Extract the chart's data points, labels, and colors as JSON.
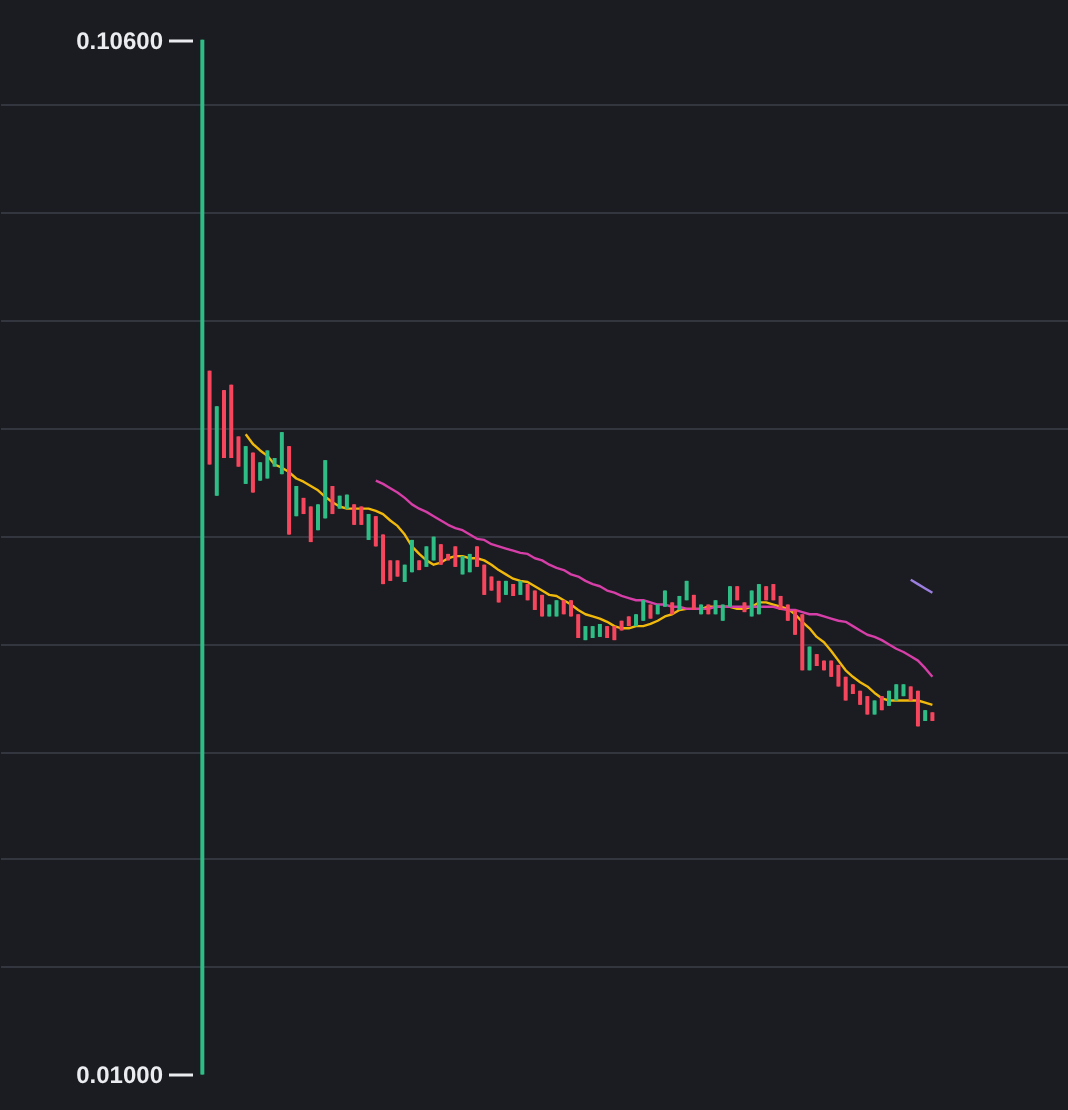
{
  "chart_data": {
    "type": "candlestick",
    "categories": [
      null,
      null,
      null,
      null,
      null,
      null,
      null,
      null,
      null,
      null,
      null,
      null,
      null,
      null,
      null,
      null,
      null,
      null,
      null,
      null,
      null,
      null,
      null,
      null,
      null,
      null,
      null,
      null,
      null,
      null,
      null,
      null,
      null,
      null,
      null,
      null,
      null,
      null,
      null,
      null,
      null,
      null,
      null,
      null,
      null,
      null,
      null,
      null,
      null,
      null,
      null,
      null,
      null,
      null,
      null,
      null,
      null,
      null,
      null,
      null,
      null,
      null,
      null,
      null,
      null,
      null,
      null,
      null,
      null,
      null,
      null,
      null,
      null,
      null,
      null,
      null,
      null,
      null,
      null,
      null,
      null,
      null,
      null,
      null,
      null,
      null,
      null,
      null,
      null,
      null,
      null,
      null,
      null,
      null,
      null,
      null,
      null,
      null,
      null,
      null,
      null,
      null
    ],
    "ohlc": [
      [
        0.01,
        0.106,
        0.01,
        0.106
      ],
      [
        0.0753,
        0.0753,
        0.0666,
        0.0666
      ],
      [
        0.0637,
        0.072,
        0.0637,
        0.072
      ],
      [
        0.0735,
        0.0735,
        0.0672,
        0.0672
      ],
      [
        0.074,
        0.074,
        0.0672,
        0.0672
      ],
      [
        0.0692,
        0.0692,
        0.0664,
        0.0664
      ],
      [
        0.0648,
        0.0683,
        0.0648,
        0.0683
      ],
      [
        0.0677,
        0.0677,
        0.064,
        0.064
      ],
      [
        0.0651,
        0.0668,
        0.0651,
        0.0668
      ],
      [
        0.0653,
        0.0679,
        0.0653,
        0.0679
      ],
      [
        0.0664,
        0.0672,
        0.0664,
        0.0672
      ],
      [
        0.0657,
        0.0696,
        0.0657,
        0.0696
      ],
      [
        0.0683,
        0.0683,
        0.0601,
        0.0601
      ],
      [
        0.0618,
        0.0646,
        0.0618,
        0.0646
      ],
      [
        0.0635,
        0.0635,
        0.062,
        0.062
      ],
      [
        0.0627,
        0.0627,
        0.0594,
        0.0594
      ],
      [
        0.0605,
        0.0629,
        0.0605,
        0.0629
      ],
      [
        0.0616,
        0.067,
        0.0616,
        0.067
      ],
      [
        0.0646,
        0.0646,
        0.062,
        0.062
      ],
      [
        0.0625,
        0.0637,
        0.0625,
        0.0637
      ],
      [
        0.0625,
        0.0638,
        0.0625,
        0.0638
      ],
      [
        0.0629,
        0.0629,
        0.061,
        0.061
      ],
      [
        0.0627,
        0.0627,
        0.061,
        0.061
      ],
      [
        0.0596,
        0.062,
        0.0596,
        0.062
      ],
      [
        0.0618,
        0.0618,
        0.059,
        0.059
      ],
      [
        0.0601,
        0.0601,
        0.0555,
        0.0555
      ],
      [
        0.0577,
        0.0577,
        0.0558,
        0.0558
      ],
      [
        0.0577,
        0.0577,
        0.0562,
        0.0562
      ],
      [
        0.0557,
        0.0573,
        0.0557,
        0.0573
      ],
      [
        0.0566,
        0.0596,
        0.0566,
        0.0596
      ],
      [
        0.0577,
        0.0577,
        0.0568,
        0.0568
      ],
      [
        0.0571,
        0.059,
        0.0571,
        0.059
      ],
      [
        0.0577,
        0.0599,
        0.0577,
        0.0599
      ],
      [
        0.0592,
        0.0592,
        0.0573,
        0.0573
      ],
      [
        0.0583,
        0.0583,
        0.0577,
        0.0577
      ],
      [
        0.059,
        0.059,
        0.0571,
        0.0571
      ],
      [
        0.0564,
        0.0581,
        0.0564,
        0.0581
      ],
      [
        0.0566,
        0.0583,
        0.0566,
        0.0583
      ],
      [
        0.059,
        0.059,
        0.0571,
        0.0571
      ],
      [
        0.0573,
        0.0573,
        0.0545,
        0.0545
      ],
      [
        0.0562,
        0.0562,
        0.0549,
        0.0549
      ],
      [
        0.0558,
        0.0558,
        0.0538,
        0.0538
      ],
      [
        0.0545,
        0.0558,
        0.0545,
        0.0558
      ],
      [
        0.0555,
        0.0555,
        0.0544,
        0.0544
      ],
      [
        0.0545,
        0.0558,
        0.0545,
        0.0558
      ],
      [
        0.0555,
        0.0555,
        0.054,
        0.054
      ],
      [
        0.0549,
        0.0549,
        0.0531,
        0.0531
      ],
      [
        0.0545,
        0.0545,
        0.0525,
        0.0525
      ],
      [
        0.0525,
        0.0536,
        0.0525,
        0.0536
      ],
      [
        0.0525,
        0.054,
        0.0525,
        0.054
      ],
      [
        0.054,
        0.054,
        0.0527,
        0.0527
      ],
      [
        0.054,
        0.054,
        0.0525,
        0.0525
      ],
      [
        0.0527,
        0.0527,
        0.0505,
        0.0505
      ],
      [
        0.0503,
        0.0516,
        0.0503,
        0.0516
      ],
      [
        0.0505,
        0.0516,
        0.0505,
        0.0516
      ],
      [
        0.0506,
        0.0518,
        0.0506,
        0.0518
      ],
      [
        0.0516,
        0.0516,
        0.0505,
        0.0505
      ],
      [
        0.0516,
        0.0516,
        0.0503,
        0.0503
      ],
      [
        0.0521,
        0.0521,
        0.0512,
        0.0512
      ],
      [
        0.0525,
        0.0525,
        0.0516,
        0.0516
      ],
      [
        0.0516,
        0.0527,
        0.0516,
        0.0527
      ],
      [
        0.0521,
        0.054,
        0.0521,
        0.054
      ],
      [
        0.0536,
        0.0536,
        0.0523,
        0.0523
      ],
      [
        0.0527,
        0.0536,
        0.0527,
        0.0536
      ],
      [
        0.0534,
        0.0549,
        0.0534,
        0.0549
      ],
      [
        0.0538,
        0.0538,
        0.0527,
        0.0527
      ],
      [
        0.0531,
        0.0544,
        0.0531,
        0.0544
      ],
      [
        0.054,
        0.0558,
        0.054,
        0.0558
      ],
      [
        0.0545,
        0.0545,
        0.0531,
        0.0531
      ],
      [
        0.0527,
        0.0536,
        0.0527,
        0.0536
      ],
      [
        0.0536,
        0.0536,
        0.0527,
        0.0527
      ],
      [
        0.0527,
        0.054,
        0.0527,
        0.054
      ],
      [
        0.0521,
        0.0536,
        0.0521,
        0.0536
      ],
      [
        0.0534,
        0.0553,
        0.0534,
        0.0553
      ],
      [
        0.0553,
        0.0553,
        0.054,
        0.054
      ],
      [
        0.0538,
        0.0538,
        0.0529,
        0.0529
      ],
      [
        0.0525,
        0.0549,
        0.0525,
        0.0549
      ],
      [
        0.0527,
        0.0555,
        0.0527,
        0.0555
      ],
      [
        0.0553,
        0.0553,
        0.054,
        0.054
      ],
      [
        0.0555,
        0.0555,
        0.054,
        0.054
      ],
      [
        0.0544,
        0.0544,
        0.0531,
        0.0531
      ],
      [
        0.0536,
        0.0536,
        0.0521,
        0.0521
      ],
      [
        0.0531,
        0.0531,
        0.0508,
        0.0508
      ],
      [
        0.0527,
        0.0527,
        0.0475,
        0.0475
      ],
      [
        0.0475,
        0.0497,
        0.0475,
        0.0497
      ],
      [
        0.049,
        0.049,
        0.0479,
        0.0479
      ],
      [
        0.0484,
        0.0484,
        0.0475,
        0.0475
      ],
      [
        0.0484,
        0.0484,
        0.0469,
        0.0469
      ],
      [
        0.048,
        0.048,
        0.046,
        0.046
      ],
      [
        0.0469,
        0.0469,
        0.0447,
        0.0447
      ],
      [
        0.0462,
        0.0462,
        0.0453,
        0.0453
      ],
      [
        0.0456,
        0.0456,
        0.0443,
        0.0443
      ],
      [
        0.0451,
        0.0451,
        0.0434,
        0.0434
      ],
      [
        0.0434,
        0.0447,
        0.0434,
        0.0447
      ],
      [
        0.0451,
        0.0451,
        0.0438,
        0.0438
      ],
      [
        0.0442,
        0.0456,
        0.0442,
        0.0456
      ],
      [
        0.0447,
        0.0462,
        0.0447,
        0.0462
      ],
      [
        0.0451,
        0.0462,
        0.0451,
        0.0462
      ],
      [
        0.046,
        0.046,
        0.0447,
        0.0447
      ],
      [
        0.0456,
        0.0456,
        0.0423,
        0.0423
      ],
      [
        0.0428,
        0.0438,
        0.0428,
        0.0438
      ],
      [
        0.0436,
        0.0436,
        0.0428,
        0.0428
      ]
    ],
    "colors": [
      "#2ebd85",
      "#f6465d",
      "#2ebd85",
      "#f6465d",
      "#f6465d",
      "#f6465d",
      "#2ebd85",
      "#f6465d",
      "#2ebd85",
      "#2ebd85",
      "#2ebd85",
      "#2ebd85",
      "#f6465d",
      "#2ebd85",
      "#f6465d",
      "#f6465d",
      "#2ebd85",
      "#2ebd85",
      "#f6465d",
      "#2ebd85",
      "#2ebd85",
      "#f6465d",
      "#f6465d",
      "#2ebd85",
      "#f6465d",
      "#f6465d",
      "#f6465d",
      "#f6465d",
      "#2ebd85",
      "#2ebd85",
      "#f6465d",
      "#2ebd85",
      "#2ebd85",
      "#f6465d",
      "#f6465d",
      "#f6465d",
      "#2ebd85",
      "#2ebd85",
      "#f6465d",
      "#f6465d",
      "#f6465d",
      "#f6465d",
      "#2ebd85",
      "#f6465d",
      "#2ebd85",
      "#f6465d",
      "#f6465d",
      "#f6465d",
      "#2ebd85",
      "#2ebd85",
      "#f6465d",
      "#f6465d",
      "#f6465d",
      "#2ebd85",
      "#2ebd85",
      "#2ebd85",
      "#f6465d",
      "#f6465d",
      "#f6465d",
      "#f6465d",
      "#2ebd85",
      "#2ebd85",
      "#f6465d",
      "#2ebd85",
      "#2ebd85",
      "#f6465d",
      "#2ebd85",
      "#2ebd85",
      "#f6465d",
      "#2ebd85",
      "#f6465d",
      "#2ebd85",
      "#2ebd85",
      "#2ebd85",
      "#f6465d",
      "#f6465d",
      "#2ebd85",
      "#2ebd85",
      "#f6465d",
      "#f6465d",
      "#f6465d",
      "#f6465d",
      "#f6465d",
      "#f6465d",
      "#2ebd85",
      "#f6465d",
      "#f6465d",
      "#f6465d",
      "#f6465d",
      "#f6465d",
      "#f6465d",
      "#f6465d",
      "#f6465d",
      "#2ebd85",
      "#f6465d",
      "#2ebd85",
      "#2ebd85",
      "#2ebd85",
      "#f6465d",
      "#f6465d",
      "#2ebd85",
      "#f6465d"
    ],
    "series": [
      {
        "type": "line",
        "color": "#f0b90b",
        "values": [
          null,
          null,
          null,
          null,
          null,
          null,
          0.0694,
          0.0685,
          0.0679,
          0.0674,
          0.0666,
          0.0663,
          0.0659,
          0.0653,
          0.065,
          0.0646,
          0.0642,
          0.0636,
          0.0631,
          0.0627,
          0.0625,
          0.0625,
          0.0625,
          0.0625,
          0.0623,
          0.062,
          0.0614,
          0.0609,
          0.0601,
          0.059,
          0.0583,
          0.0577,
          0.0573,
          0.0575,
          0.0579,
          0.0581,
          0.0581,
          0.0579,
          0.0579,
          0.0577,
          0.0573,
          0.0568,
          0.0564,
          0.056,
          0.0558,
          0.0557,
          0.0553,
          0.0549,
          0.0545,
          0.0544,
          0.054,
          0.0536,
          0.0531,
          0.0527,
          0.0525,
          0.0523,
          0.052,
          0.0516,
          0.0514,
          0.0514,
          0.0516,
          0.0516,
          0.0518,
          0.0521,
          0.0525,
          0.0527,
          0.0531,
          0.0532,
          0.0532,
          0.0532,
          0.0534,
          0.0534,
          0.0534,
          0.0534,
          0.0532,
          0.0532,
          0.0534,
          0.0538,
          0.0538,
          0.0536,
          0.0534,
          0.0532,
          0.0527,
          0.052,
          0.0514,
          0.0506,
          0.0501,
          0.0493,
          0.0484,
          0.0475,
          0.0469,
          0.0464,
          0.046,
          0.0454,
          0.0449,
          0.0447,
          0.0447,
          0.0447,
          0.0447,
          0.0447,
          0.0445,
          0.0443
        ]
      },
      {
        "type": "line",
        "color": "#d63ea8",
        "values": [
          null,
          null,
          null,
          null,
          null,
          null,
          null,
          null,
          null,
          null,
          null,
          null,
          null,
          null,
          null,
          null,
          null,
          null,
          null,
          null,
          null,
          null,
          null,
          null,
          0.0651,
          0.0648,
          0.0644,
          0.064,
          0.0635,
          0.0629,
          0.0625,
          0.0622,
          0.0618,
          0.0614,
          0.061,
          0.0607,
          0.0605,
          0.0601,
          0.0597,
          0.0596,
          0.0592,
          0.059,
          0.0588,
          0.0586,
          0.0584,
          0.0583,
          0.0579,
          0.0577,
          0.0573,
          0.057,
          0.0568,
          0.0564,
          0.0562,
          0.0558,
          0.0555,
          0.0553,
          0.0549,
          0.0547,
          0.0544,
          0.0542,
          0.054,
          0.054,
          0.0538,
          0.0536,
          0.0536,
          0.0534,
          0.0534,
          0.0532,
          0.0532,
          0.0532,
          0.0532,
          0.0534,
          0.0534,
          0.0534,
          0.0534,
          0.0534,
          0.0534,
          0.0534,
          0.0534,
          0.0534,
          0.0532,
          0.0531,
          0.0531,
          0.0529,
          0.0527,
          0.0527,
          0.0525,
          0.0523,
          0.0521,
          0.052,
          0.0516,
          0.0512,
          0.0508,
          0.0506,
          0.0503,
          0.0499,
          0.0495,
          0.0492,
          0.0488,
          0.0484,
          0.0477,
          0.0469
        ]
      },
      {
        "type": "line",
        "color": "#9c7ee0",
        "values": [
          null,
          null,
          null,
          null,
          null,
          null,
          null,
          null,
          null,
          null,
          null,
          null,
          null,
          null,
          null,
          null,
          null,
          null,
          null,
          null,
          null,
          null,
          null,
          null,
          null,
          null,
          null,
          null,
          null,
          null,
          null,
          null,
          null,
          null,
          null,
          null,
          null,
          null,
          null,
          null,
          null,
          null,
          null,
          null,
          null,
          null,
          null,
          null,
          null,
          null,
          null,
          null,
          null,
          null,
          null,
          null,
          null,
          null,
          null,
          null,
          null,
          null,
          null,
          null,
          null,
          null,
          null,
          null,
          null,
          null,
          null,
          null,
          null,
          null,
          null,
          null,
          null,
          null,
          null,
          null,
          null,
          null,
          null,
          null,
          null,
          null,
          null,
          null,
          null,
          null,
          null,
          null,
          null,
          null,
          null,
          null,
          null,
          null,
          0.0559,
          0.0555,
          0.0551,
          0.0547
        ]
      }
    ],
    "ylim": [
      0.0067,
      0.1097
    ],
    "yticks": [
      {
        "value": 0.01,
        "label": "0.01000"
      },
      {
        "value": 0.02,
        "label": null
      },
      {
        "value": 0.03,
        "label": null
      },
      {
        "value": 0.04,
        "label": null
      },
      {
        "value": 0.05,
        "label": null
      },
      {
        "value": 0.06,
        "label": null
      },
      {
        "value": 0.07,
        "label": null
      },
      {
        "value": 0.08,
        "label": null
      },
      {
        "value": 0.09,
        "label": null
      },
      {
        "value": 0.1,
        "label": null
      },
      {
        "value": 0.106,
        "label": "0.10600"
      }
    ],
    "grid": "y",
    "tick_labels": "y"
  }
}
